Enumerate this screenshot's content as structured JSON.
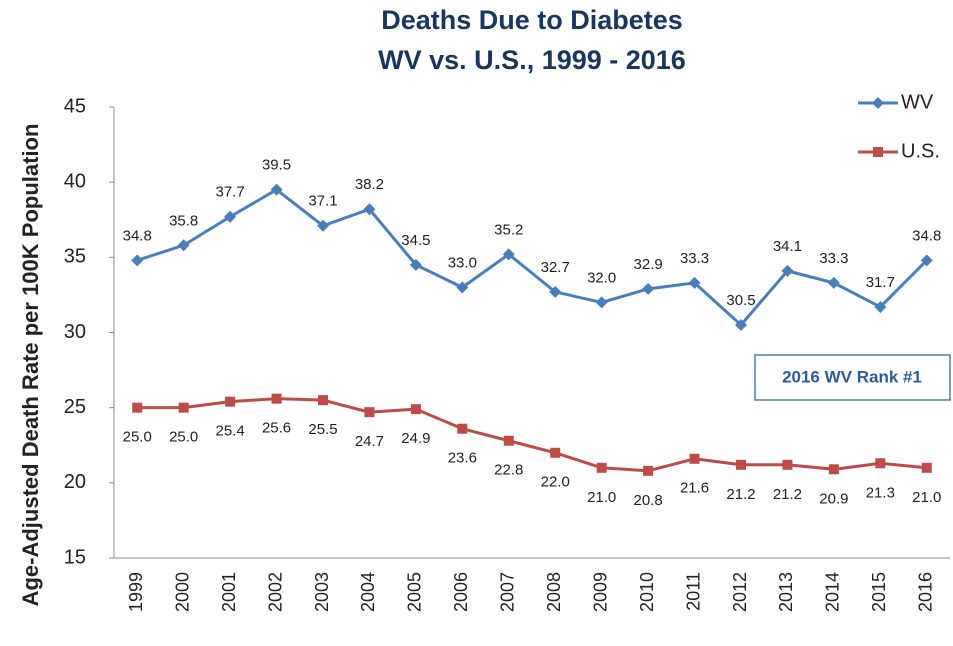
{
  "chart_data": {
    "type": "line",
    "title": [
      "Deaths Due to Diabetes",
      "WV vs. U.S., 1999 - 2016"
    ],
    "y_label": "Age-Adjusted Death Rate per 100K Population",
    "categories": [
      "1999",
      "2000",
      "2001",
      "2002",
      "2003",
      "2004",
      "2005",
      "2006",
      "2007",
      "2008",
      "2009",
      "2010",
      "2011",
      "2012",
      "2013",
      "2014",
      "2015",
      "2016"
    ],
    "series": [
      {
        "name": "WV",
        "color": "#4a7ebb",
        "marker": "diamond",
        "values": [
          34.8,
          35.8,
          37.7,
          39.5,
          37.1,
          38.2,
          34.5,
          33.0,
          35.2,
          32.7,
          32.0,
          32.9,
          33.3,
          30.5,
          34.1,
          33.3,
          31.7,
          34.8
        ],
        "value_labels": [
          "34.8",
          "35.8",
          "37.7",
          "39.5",
          "37.1",
          "38.2",
          "34.5",
          "33.0",
          "35.2",
          "32.7",
          "32.0",
          "32.9",
          "33.3",
          "30.5",
          "34.1",
          "33.3",
          "31.7",
          "34.8"
        ]
      },
      {
        "name": "U.S.",
        "color": "#be4b48",
        "marker": "square",
        "values": [
          25.0,
          25.0,
          25.4,
          25.6,
          25.5,
          24.7,
          24.9,
          23.6,
          22.8,
          22.0,
          21.0,
          20.8,
          21.6,
          21.2,
          21.2,
          20.9,
          21.3,
          21.0
        ],
        "value_labels": [
          "25.0",
          "25.0",
          "25.4",
          "25.6",
          "25.5",
          "24.7",
          "24.9",
          "23.6",
          "22.8",
          "22.0",
          "21.0",
          "20.8",
          "21.6",
          "21.2",
          "21.2",
          "20.9",
          "21.3",
          "21.0"
        ]
      }
    ],
    "annotation": "2016 WV Rank #1",
    "ylim": [
      15,
      45
    ],
    "yticks": [
      15,
      20,
      25,
      30,
      35,
      40,
      45
    ],
    "legend": "top-right",
    "grid": false
  }
}
